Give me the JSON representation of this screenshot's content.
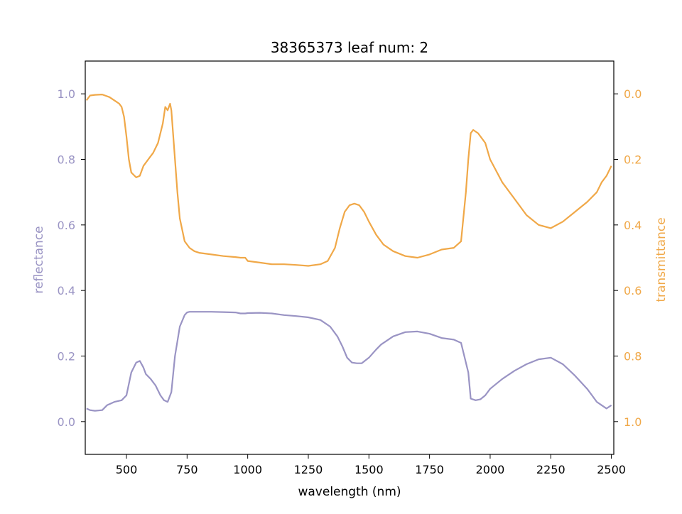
{
  "chart_data": {
    "type": "line",
    "title": "38365373 leaf num: 2",
    "xlabel": "wavelength (nm)",
    "xlim": [
      330,
      2510
    ],
    "x_ticks": [
      "500",
      "750",
      "1000",
      "1250",
      "1500",
      "1750",
      "2000",
      "2250",
      "2500"
    ],
    "y_left": {
      "label": "reflectance",
      "color": "#9a94c4",
      "ylim": [
        -0.1,
        1.1
      ],
      "ticks": [
        "0.0",
        "0.2",
        "0.4",
        "0.6",
        "0.8",
        "1.0"
      ]
    },
    "y_right": {
      "label": "transmittance",
      "color": "#f0a848",
      "ylim": [
        1.1,
        -0.1
      ],
      "inverted": true,
      "ticks": [
        "0.0",
        "0.2",
        "0.4",
        "0.6",
        "0.8",
        "1.0"
      ]
    },
    "grid": false,
    "series": [
      {
        "axis": "left",
        "color": "#9a94c4",
        "x": [
          335,
          350,
          370,
          400,
          420,
          450,
          480,
          500,
          520,
          540,
          555,
          570,
          580,
          600,
          620,
          640,
          655,
          670,
          685,
          700,
          720,
          740,
          750,
          760,
          780,
          800,
          850,
          900,
          950,
          970,
          990,
          1000,
          1050,
          1100,
          1150,
          1200,
          1250,
          1300,
          1340,
          1370,
          1390,
          1410,
          1430,
          1450,
          1470,
          1500,
          1530,
          1550,
          1600,
          1650,
          1700,
          1750,
          1800,
          1850,
          1880,
          1900,
          1910,
          1920,
          1940,
          1960,
          1980,
          2000,
          2050,
          2100,
          2150,
          2200,
          2250,
          2300,
          2350,
          2400,
          2420,
          2440,
          2460,
          2480,
          2500
        ],
        "values": [
          0.04,
          0.035,
          0.033,
          0.035,
          0.05,
          0.06,
          0.065,
          0.08,
          0.15,
          0.18,
          0.185,
          0.165,
          0.145,
          0.13,
          0.11,
          0.08,
          0.065,
          0.06,
          0.09,
          0.2,
          0.29,
          0.325,
          0.333,
          0.335,
          0.335,
          0.335,
          0.335,
          0.334,
          0.333,
          0.33,
          0.33,
          0.331,
          0.332,
          0.33,
          0.325,
          0.322,
          0.318,
          0.31,
          0.29,
          0.26,
          0.23,
          0.195,
          0.18,
          0.178,
          0.178,
          0.195,
          0.22,
          0.235,
          0.26,
          0.273,
          0.275,
          0.268,
          0.255,
          0.25,
          0.24,
          0.18,
          0.15,
          0.07,
          0.065,
          0.068,
          0.08,
          0.1,
          0.13,
          0.155,
          0.175,
          0.19,
          0.195,
          0.175,
          0.14,
          0.1,
          0.08,
          0.06,
          0.05,
          0.04,
          0.05
        ]
      },
      {
        "axis": "right",
        "color": "#f0a848",
        "x": [
          335,
          350,
          370,
          400,
          430,
          450,
          470,
          480,
          490,
          500,
          510,
          520,
          540,
          555,
          570,
          590,
          610,
          630,
          650,
          660,
          670,
          680,
          685,
          690,
          700,
          710,
          720,
          740,
          760,
          780,
          800,
          850,
          900,
          950,
          970,
          990,
          1000,
          1050,
          1100,
          1150,
          1200,
          1250,
          1300,
          1330,
          1360,
          1380,
          1400,
          1420,
          1440,
          1460,
          1480,
          1500,
          1530,
          1560,
          1600,
          1650,
          1700,
          1750,
          1800,
          1850,
          1880,
          1900,
          1910,
          1920,
          1930,
          1950,
          1980,
          2000,
          2050,
          2100,
          2150,
          2200,
          2250,
          2300,
          2350,
          2400,
          2440,
          2460,
          2480,
          2500
        ],
        "values": [
          0.02,
          0.005,
          0.003,
          0.002,
          0.01,
          0.02,
          0.03,
          0.04,
          0.07,
          0.13,
          0.2,
          0.24,
          0.255,
          0.25,
          0.22,
          0.2,
          0.18,
          0.15,
          0.09,
          0.04,
          0.05,
          0.03,
          0.05,
          0.1,
          0.2,
          0.3,
          0.38,
          0.45,
          0.47,
          0.48,
          0.485,
          0.49,
          0.495,
          0.498,
          0.5,
          0.5,
          0.51,
          0.515,
          0.52,
          0.52,
          0.522,
          0.525,
          0.52,
          0.51,
          0.47,
          0.41,
          0.36,
          0.34,
          0.335,
          0.34,
          0.36,
          0.39,
          0.43,
          0.46,
          0.48,
          0.495,
          0.5,
          0.49,
          0.475,
          0.47,
          0.45,
          0.3,
          0.2,
          0.12,
          0.11,
          0.12,
          0.15,
          0.2,
          0.27,
          0.32,
          0.37,
          0.4,
          0.41,
          0.39,
          0.36,
          0.33,
          0.3,
          0.27,
          0.25,
          0.22
        ]
      }
    ]
  }
}
